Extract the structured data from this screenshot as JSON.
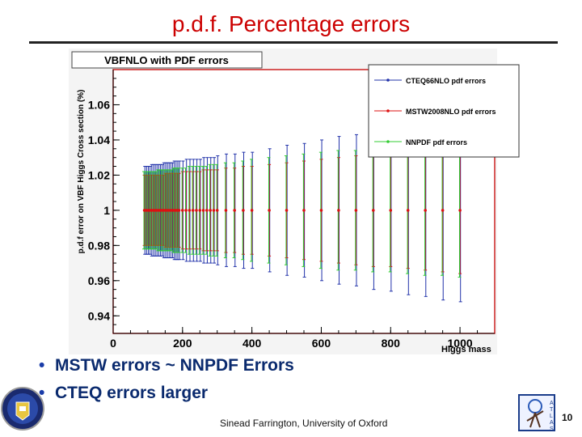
{
  "slide": {
    "title": "p.d.f. Percentage errors",
    "bullets": [
      "MSTW errors ~ NNPDF Errors",
      "CTEQ errors larger"
    ],
    "footer": "Sinead Farrington, University of Oxford",
    "page_number": "10"
  },
  "chart_data": {
    "type": "scatter",
    "title": "VBFNLO with PDF errors",
    "xlabel": "Higgs mass",
    "ylabel": "p.d.f error on VBF Higgs Cross section (%)",
    "xlim": [
      0,
      1100
    ],
    "ylim": [
      0.93,
      1.08
    ],
    "x_ticks": [
      "0",
      "200",
      "400",
      "600",
      "800",
      "1000"
    ],
    "y_ticks": [
      "0.94",
      "0.96",
      "0.98",
      "1",
      "1.02",
      "1.04",
      "1.06"
    ],
    "legend_position": "top-right",
    "x": [
      90,
      95,
      100,
      105,
      110,
      115,
      120,
      125,
      130,
      135,
      140,
      145,
      150,
      155,
      160,
      165,
      170,
      175,
      180,
      185,
      190,
      200,
      210,
      220,
      230,
      240,
      250,
      260,
      270,
      280,
      290,
      300,
      325,
      350,
      375,
      400,
      450,
      500,
      550,
      600,
      650,
      700,
      750,
      800,
      850,
      900,
      950,
      1000
    ],
    "series": [
      {
        "name": "CTEQ66NLO pdf errors",
        "color": "#2233aa",
        "central": 1.0,
        "err": [
          0.025,
          0.025,
          0.025,
          0.025,
          0.026,
          0.026,
          0.026,
          0.026,
          0.026,
          0.026,
          0.026,
          0.027,
          0.027,
          0.027,
          0.027,
          0.027,
          0.027,
          0.028,
          0.028,
          0.028,
          0.028,
          0.028,
          0.029,
          0.029,
          0.029,
          0.029,
          0.029,
          0.03,
          0.03,
          0.03,
          0.03,
          0.031,
          0.032,
          0.032,
          0.033,
          0.033,
          0.035,
          0.037,
          0.038,
          0.04,
          0.042,
          0.043,
          0.045,
          0.046,
          0.048,
          0.049,
          0.051,
          0.052
        ]
      },
      {
        "name": "MSTW2008NLO pdf errors",
        "color": "#dd1111",
        "central": 1.0,
        "err": [
          0.02,
          0.02,
          0.02,
          0.02,
          0.02,
          0.02,
          0.02,
          0.02,
          0.02,
          0.02,
          0.02,
          0.02,
          0.021,
          0.021,
          0.021,
          0.021,
          0.021,
          0.021,
          0.021,
          0.021,
          0.021,
          0.022,
          0.022,
          0.022,
          0.022,
          0.022,
          0.022,
          0.023,
          0.023,
          0.023,
          0.023,
          0.023,
          0.024,
          0.024,
          0.025,
          0.025,
          0.026,
          0.027,
          0.028,
          0.029,
          0.03,
          0.031,
          0.032,
          0.032,
          0.033,
          0.034,
          0.035,
          0.036
        ]
      },
      {
        "name": "NNPDF pdf errors",
        "color": "#33cc33",
        "central": 1.0,
        "err": [
          0.022,
          0.022,
          0.022,
          0.022,
          0.022,
          0.022,
          0.022,
          0.022,
          0.023,
          0.023,
          0.023,
          0.023,
          0.023,
          0.023,
          0.023,
          0.023,
          0.023,
          0.024,
          0.024,
          0.024,
          0.024,
          0.024,
          0.024,
          0.025,
          0.025,
          0.025,
          0.025,
          0.025,
          0.025,
          0.026,
          0.026,
          0.026,
          0.027,
          0.027,
          0.028,
          0.029,
          0.03,
          0.031,
          0.032,
          0.033,
          0.034,
          0.034,
          0.035,
          0.035,
          0.036,
          0.037,
          0.037,
          0.038
        ]
      }
    ]
  },
  "colors": {
    "title": "#cc0000",
    "bullet_text": "#0a2a6e",
    "frame": "#cc2222"
  }
}
